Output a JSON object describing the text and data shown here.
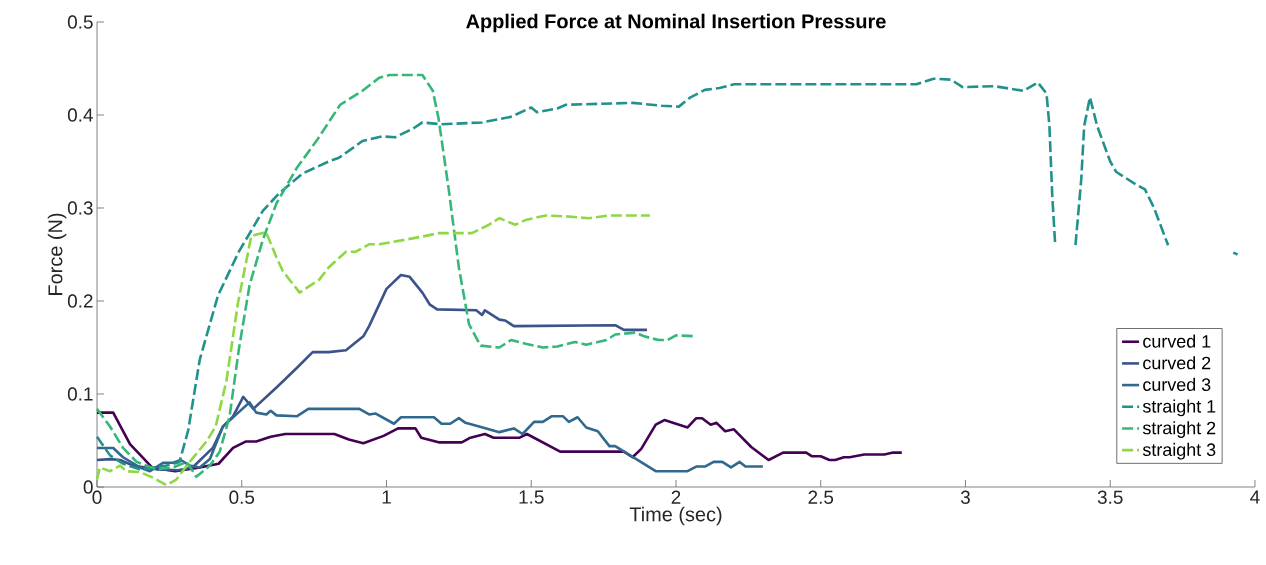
{
  "chart_data": {
    "type": "line",
    "title": "Applied Force at Nominal Insertion Pressure",
    "xlabel": "Time (sec)",
    "ylabel": "Force (N)",
    "xlim": [
      0,
      4
    ],
    "ylim": [
      0,
      0.5
    ],
    "xticks": [
      0,
      0.5,
      1,
      1.5,
      2,
      2.5,
      3,
      3.5,
      4
    ],
    "yticks": [
      0,
      0.1,
      0.2,
      0.3,
      0.4,
      0.5
    ],
    "grid": false,
    "legend": "bottom right",
    "marker": "none",
    "series": [
      {
        "name": "curved 1",
        "color": "#440154",
        "line_style": "solid",
        "x": [
          0,
          0.056,
          0.114,
          0.19,
          0.27,
          0.355,
          0.42,
          0.47,
          0.515,
          0.55,
          0.6,
          0.65,
          0.82,
          0.87,
          0.92,
          0.99,
          1.04,
          1.1,
          1.12,
          1.18,
          1.26,
          1.29,
          1.34,
          1.37,
          1.46,
          1.485,
          1.6,
          1.82,
          1.85,
          1.88,
          1.93,
          1.96,
          2.04,
          2.07,
          2.09,
          2.12,
          2.14,
          2.17,
          2.2,
          2.26,
          2.32,
          2.37,
          2.45,
          2.47,
          2.5,
          2.53,
          2.55,
          2.58,
          2.6,
          2.65,
          2.72,
          2.75,
          2.78
        ],
        "values": [
          0.08,
          0.08,
          0.046,
          0.021,
          0.017,
          0.021,
          0.025,
          0.042,
          0.049,
          0.049,
          0.054,
          0.057,
          0.057,
          0.051,
          0.047,
          0.055,
          0.063,
          0.063,
          0.053,
          0.048,
          0.048,
          0.053,
          0.057,
          0.053,
          0.053,
          0.057,
          0.038,
          0.038,
          0.032,
          0.041,
          0.067,
          0.072,
          0.064,
          0.074,
          0.074,
          0.067,
          0.069,
          0.06,
          0.062,
          0.043,
          0.029,
          0.037,
          0.037,
          0.033,
          0.033,
          0.029,
          0.029,
          0.032,
          0.032,
          0.035,
          0.035,
          0.037,
          0.037
        ]
      },
      {
        "name": "curved 2",
        "color": "#3b528b",
        "line_style": "solid",
        "x": [
          0,
          0.045,
          0.08,
          0.125,
          0.205,
          0.28,
          0.33,
          0.4,
          0.435,
          0.47,
          0.505,
          0.54,
          0.62,
          0.69,
          0.745,
          0.8,
          0.86,
          0.92,
          0.94,
          1.0,
          1.05,
          1.08,
          1.124,
          1.15,
          1.175,
          1.31,
          1.33,
          1.34,
          1.39,
          1.41,
          1.44,
          1.79,
          1.82,
          1.9
        ],
        "values": [
          0.029,
          0.03,
          0.029,
          0.023,
          0.019,
          0.018,
          0.021,
          0.042,
          0.065,
          0.076,
          0.097,
          0.084,
          0.107,
          0.128,
          0.145,
          0.145,
          0.147,
          0.162,
          0.173,
          0.213,
          0.228,
          0.226,
          0.209,
          0.196,
          0.191,
          0.19,
          0.185,
          0.19,
          0.18,
          0.179,
          0.173,
          0.174,
          0.169,
          0.169
        ]
      },
      {
        "name": "curved 3",
        "color": "#31688e",
        "line_style": "solid",
        "x": [
          0,
          0.056,
          0.09,
          0.148,
          0.183,
          0.228,
          0.263,
          0.29,
          0.32,
          0.355,
          0.39,
          0.435,
          0.527,
          0.55,
          0.585,
          0.6,
          0.62,
          0.69,
          0.73,
          0.906,
          0.94,
          0.963,
          1.026,
          1.05,
          1.164,
          1.19,
          1.22,
          1.25,
          1.273,
          1.32,
          1.39,
          1.44,
          1.47,
          1.51,
          1.54,
          1.57,
          1.61,
          1.63,
          1.66,
          1.69,
          1.73,
          1.77,
          1.79,
          1.93,
          2.04,
          2.07,
          2.1,
          2.13,
          2.16,
          2.19,
          2.22,
          2.24,
          2.3
        ],
        "values": [
          0.042,
          0.042,
          0.032,
          0.021,
          0.017,
          0.026,
          0.026,
          0.029,
          0.023,
          0.021,
          0.03,
          0.065,
          0.091,
          0.08,
          0.078,
          0.082,
          0.077,
          0.076,
          0.084,
          0.084,
          0.078,
          0.079,
          0.068,
          0.075,
          0.075,
          0.068,
          0.068,
          0.074,
          0.069,
          0.065,
          0.059,
          0.063,
          0.057,
          0.07,
          0.07,
          0.076,
          0.076,
          0.07,
          0.075,
          0.064,
          0.06,
          0.044,
          0.044,
          0.017,
          0.017,
          0.022,
          0.022,
          0.027,
          0.027,
          0.021,
          0.027,
          0.022,
          0.022
        ]
      },
      {
        "name": "straight 1",
        "color": "#21918c",
        "line_style": "dashed",
        "x": [
          0,
          0.045,
          0.09,
          0.148,
          0.24,
          0.285,
          0.315,
          0.355,
          0.418,
          0.49,
          0.573,
          0.63,
          0.71,
          0.8,
          0.836,
          0.917,
          0.986,
          1.03,
          1.095,
          1.124,
          1.19,
          1.33,
          1.43,
          1.5,
          1.52,
          1.59,
          1.62,
          1.85,
          1.95,
          2.01,
          2.05,
          2.1,
          2.15,
          2.2,
          2.83,
          2.89,
          2.95,
          2.99,
          3.1,
          3.16,
          3.2,
          3.25,
          3.28,
          3.29,
          3.3,
          3.31,
          3.345,
          3.38,
          3.4,
          3.41,
          3.43,
          3.455,
          3.5,
          3.52,
          3.58,
          3.62,
          3.65,
          3.7,
          3.82,
          3.925,
          3.94
        ],
        "values": [
          0.054,
          0.034,
          0.025,
          0.019,
          0.023,
          0.027,
          0.061,
          0.137,
          0.206,
          0.253,
          0.297,
          0.316,
          0.337,
          0.35,
          0.354,
          0.372,
          0.377,
          0.376,
          0.386,
          0.392,
          0.39,
          0.392,
          0.398,
          0.408,
          0.403,
          0.407,
          0.411,
          0.413,
          0.41,
          0.409,
          0.419,
          0.427,
          0.429,
          0.433,
          0.433,
          0.439,
          0.438,
          0.43,
          0.431,
          0.428,
          0.426,
          0.435,
          0.423,
          0.388,
          0.312,
          0.26,
          null,
          0.26,
          0.331,
          0.388,
          0.419,
          0.388,
          0.35,
          0.339,
          0.327,
          0.32,
          0.301,
          0.26,
          null,
          0.252,
          0.25
        ]
      },
      {
        "name": "straight 2",
        "color": "#35b779",
        "line_style": "dashed",
        "x": [
          0,
          0.045,
          0.09,
          0.137,
          0.205,
          0.263,
          0.31,
          0.343,
          0.39,
          0.424,
          0.458,
          0.49,
          0.527,
          0.573,
          0.62,
          0.69,
          0.76,
          0.84,
          0.917,
          0.975,
          1.01,
          1.124,
          1.16,
          1.18,
          1.215,
          1.25,
          1.285,
          1.325,
          1.39,
          1.43,
          1.48,
          1.54,
          1.59,
          1.65,
          1.69,
          1.76,
          1.79,
          1.86,
          1.89,
          1.94,
          1.97,
          2.0,
          2.07
        ],
        "values": [
          0.084,
          0.065,
          0.042,
          0.027,
          0.019,
          0.021,
          0.027,
          0.011,
          0.023,
          0.038,
          0.076,
          0.148,
          0.217,
          0.266,
          0.305,
          0.343,
          0.373,
          0.411,
          0.426,
          0.44,
          0.443,
          0.443,
          0.426,
          0.396,
          0.32,
          0.236,
          0.175,
          0.152,
          0.15,
          0.158,
          0.154,
          0.15,
          0.151,
          0.156,
          0.153,
          0.158,
          0.164,
          0.166,
          0.162,
          0.158,
          0.158,
          0.163,
          0.162
        ]
      },
      {
        "name": "straight 3",
        "color": "#8fd744",
        "line_style": "dashed",
        "x": [
          0,
          0.01,
          0.045,
          0.08,
          0.1,
          0.148,
          0.194,
          0.24,
          0.274,
          0.32,
          0.378,
          0.41,
          0.447,
          0.487,
          0.533,
          0.584,
          0.62,
          0.642,
          0.7,
          0.768,
          0.8,
          0.86,
          0.894,
          0.94,
          0.975,
          1.067,
          1.135,
          1.18,
          1.295,
          1.354,
          1.39,
          1.445,
          1.48,
          1.55,
          1.62,
          1.7,
          1.77,
          1.91
        ],
        "values": [
          0.008,
          0.021,
          0.017,
          0.023,
          0.017,
          0.016,
          0.01,
          0.002,
          0.008,
          0.027,
          0.049,
          0.065,
          0.114,
          0.198,
          0.27,
          0.274,
          0.247,
          0.232,
          0.209,
          0.223,
          0.236,
          0.253,
          0.253,
          0.261,
          0.261,
          0.266,
          0.27,
          0.273,
          0.273,
          0.282,
          0.289,
          0.282,
          0.287,
          0.292,
          0.291,
          0.289,
          0.292,
          0.292
        ]
      }
    ]
  }
}
